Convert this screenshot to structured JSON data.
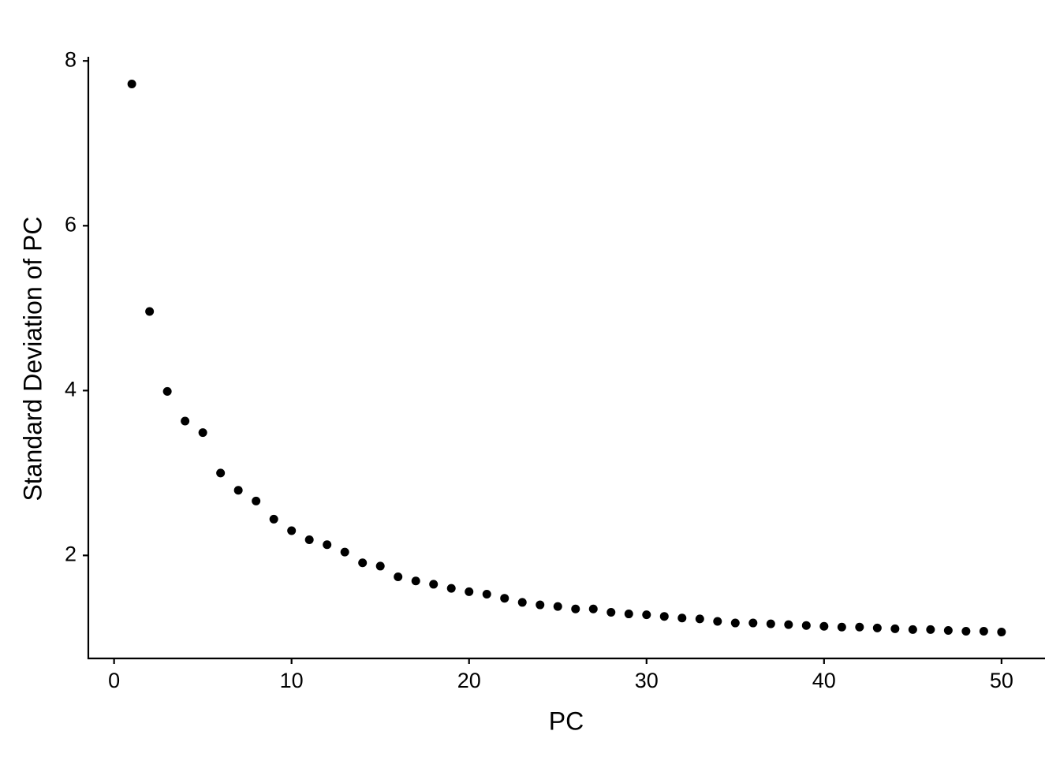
{
  "chart_data": {
    "type": "scatter",
    "x_label": "PC",
    "y_label": "Standard Deviation of PC",
    "x": [
      1,
      2,
      3,
      4,
      5,
      6,
      7,
      8,
      9,
      10,
      11,
      12,
      13,
      14,
      15,
      16,
      17,
      18,
      19,
      20,
      21,
      22,
      23,
      24,
      25,
      26,
      27,
      28,
      29,
      30,
      31,
      32,
      33,
      34,
      35,
      36,
      37,
      38,
      39,
      40,
      41,
      42,
      43,
      44,
      45,
      46,
      47,
      48,
      49,
      50
    ],
    "values": [
      7.72,
      4.96,
      3.99,
      3.63,
      3.49,
      3.0,
      2.79,
      2.66,
      2.44,
      2.3,
      2.19,
      2.13,
      2.04,
      1.91,
      1.87,
      1.74,
      1.69,
      1.65,
      1.6,
      1.56,
      1.53,
      1.48,
      1.43,
      1.4,
      1.38,
      1.35,
      1.35,
      1.31,
      1.29,
      1.28,
      1.26,
      1.24,
      1.23,
      1.2,
      1.18,
      1.18,
      1.17,
      1.16,
      1.15,
      1.14,
      1.13,
      1.13,
      1.12,
      1.11,
      1.1,
      1.1,
      1.09,
      1.08,
      1.08,
      1.07
    ],
    "color": "#000000",
    "xlim": [
      -1.45,
      52.45
    ],
    "ylim": [
      0.75,
      8.05
    ],
    "xticks": [
      0,
      10,
      20,
      30,
      40,
      50
    ],
    "yticks": [
      2,
      4,
      6,
      8
    ],
    "grid": false
  }
}
